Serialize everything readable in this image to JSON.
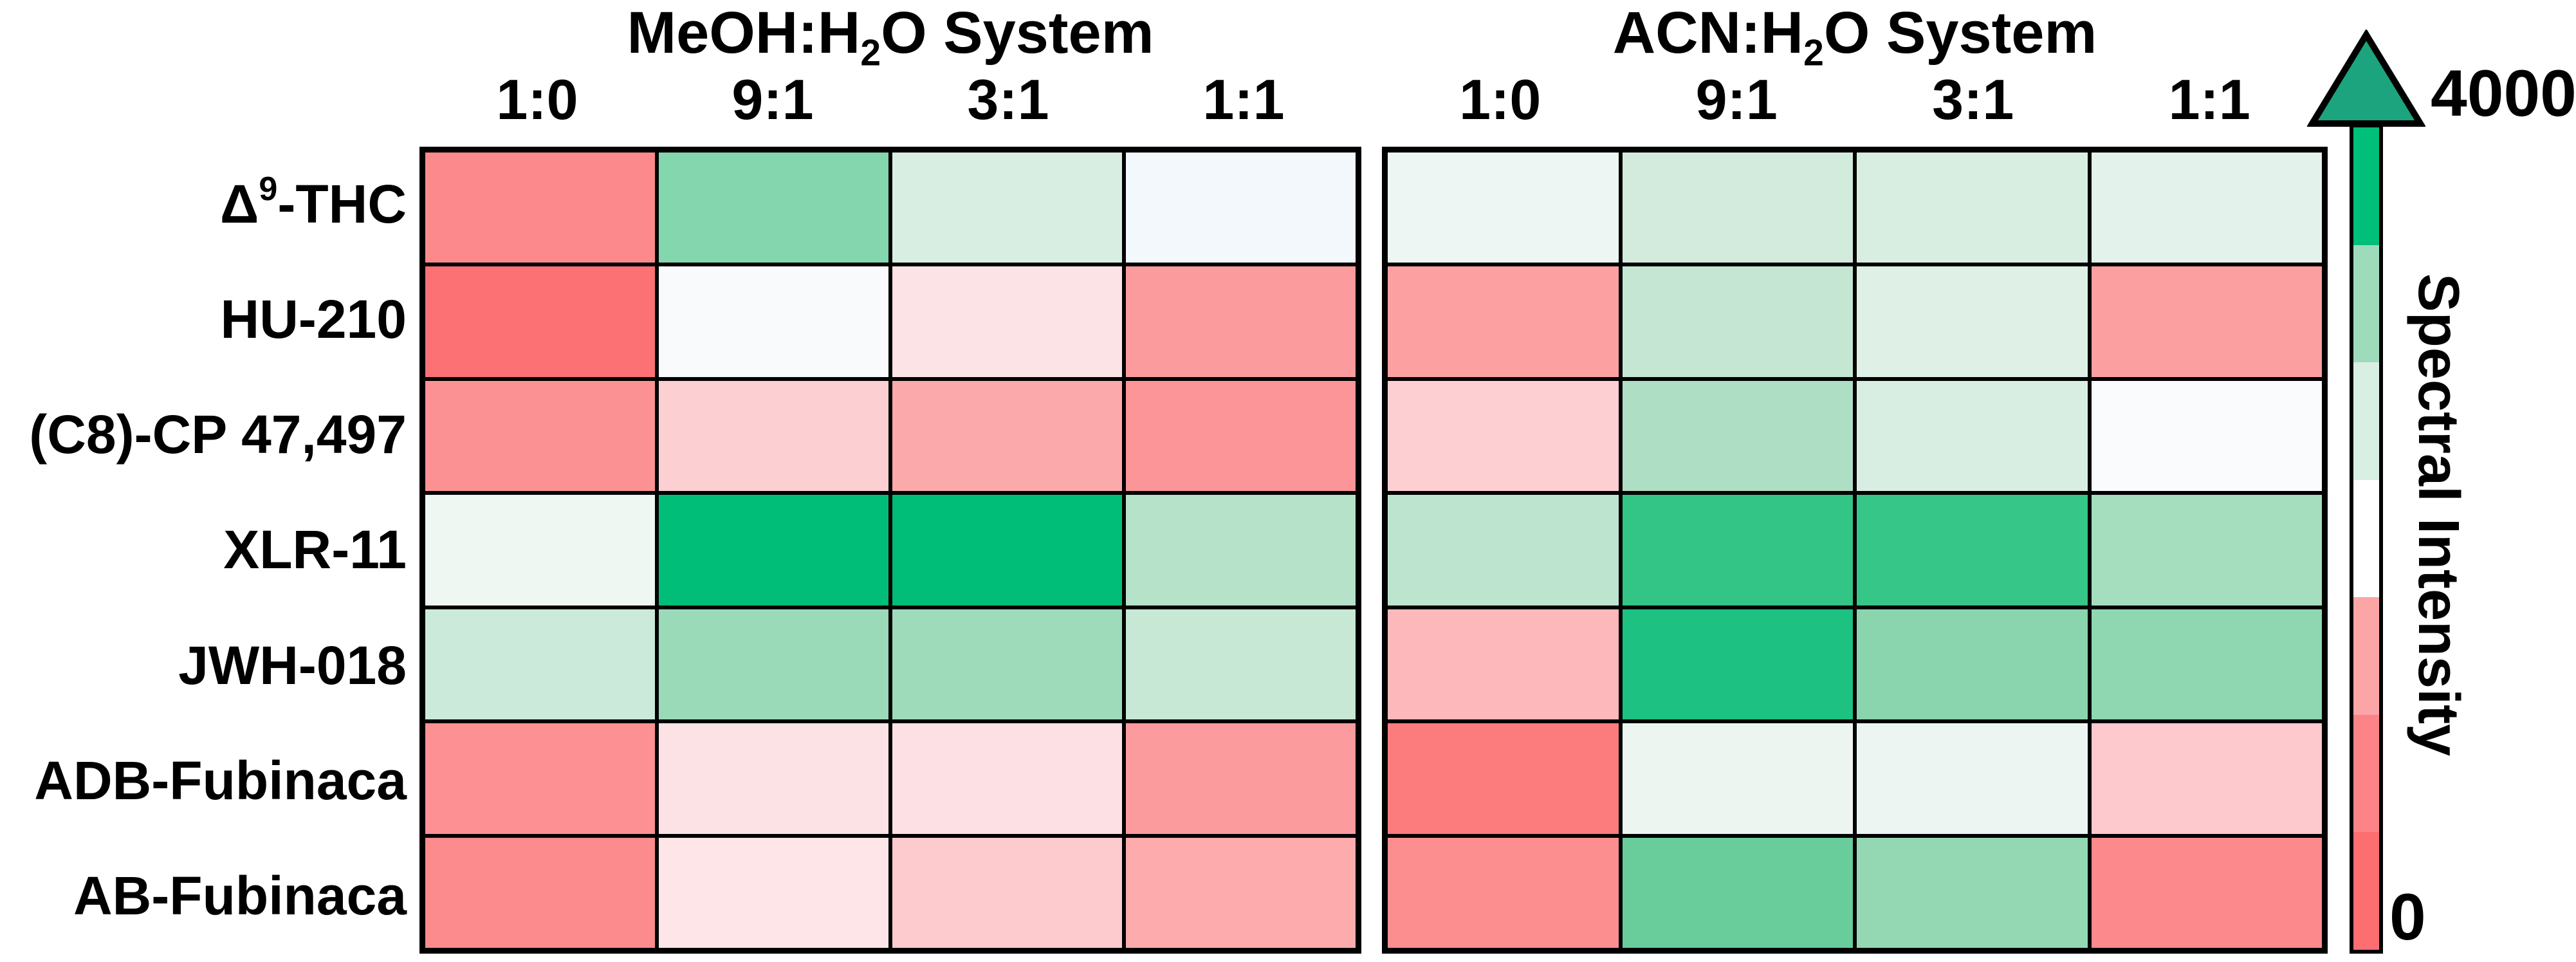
{
  "titles": {
    "left": {
      "pre": "MeOH:H",
      "sub": "2",
      "post": "O System"
    },
    "right": {
      "pre": "ACN:H",
      "sub": "2",
      "post": "O System"
    }
  },
  "column_labels": {
    "meoh": [
      "1:0",
      "9:1",
      "3:1",
      "1:1"
    ],
    "acn": [
      "1:0",
      "9:1",
      "3:1",
      "1:1"
    ]
  },
  "row_labels": [
    {
      "pre": "Δ",
      "sup": "9",
      "main": "-THC"
    },
    {
      "pre": "",
      "sup": "",
      "main": "HU-210"
    },
    {
      "pre": "",
      "sup": "",
      "main": "(C8)-CP 47,497"
    },
    {
      "pre": "",
      "sup": "",
      "main": "XLR-11"
    },
    {
      "pre": "",
      "sup": "",
      "main": "JWH-018"
    },
    {
      "pre": "",
      "sup": "",
      "main": "ADB-Fubinaca"
    },
    {
      "pre": "",
      "sup": "",
      "main": "AB-Fubinaca"
    }
  ],
  "colorbar": {
    "max_label": "4000",
    "min_label": "0",
    "title": "Spectral Intensity",
    "arrow_color": "#1BA47E",
    "border_color": "#000000",
    "segments": [
      "#00BF7B",
      "#9EDBBA",
      "#D9EFE3",
      "#FFFFFF",
      "#FCA5A7",
      "#FC8486",
      "#FC6E70"
    ]
  },
  "chart_data": {
    "type": "heatmap",
    "rows": [
      "Δ9-THC",
      "HU-210",
      "(C8)-CP 47,497",
      "XLR-11",
      "JWH-018",
      "ADB-Fubinaca",
      "AB-Fubinaca"
    ],
    "colorscale": {
      "label": "Spectral Intensity",
      "min": 0,
      "max": 4000,
      "min_color": "#FC6E70",
      "mid_color": "#FFFFFF",
      "max_color": "#00BF7B",
      "legend_position": "right"
    },
    "panels": [
      {
        "title": "MeOH:H2O System",
        "columns": [
          "1:0",
          "9:1",
          "3:1",
          "1:1"
        ],
        "values": [
          [
            450,
            2950,
            2300,
            2050
          ],
          [
            100,
            2000,
            1650,
            650
          ],
          [
            550,
            1350,
            850,
            600
          ],
          [
            2100,
            3950,
            3950,
            2600
          ],
          [
            2400,
            2800,
            2800,
            2450
          ],
          [
            500,
            1600,
            1600,
            650
          ],
          [
            450,
            1650,
            1300,
            900
          ]
        ],
        "cell_colors": [
          [
            "#FC8A8C",
            "#84D6AE",
            "#D8EEE2",
            "#F2F8FB"
          ],
          [
            "#FC7173",
            "#F9FAFC",
            "#FCE3E6",
            "#FC9B9D"
          ],
          [
            "#FC9193",
            "#FCCFD2",
            "#FCA9AB",
            "#FC9597"
          ],
          [
            "#EFF7F3",
            "#00BE77",
            "#00BE77",
            "#B5E2C9"
          ],
          [
            "#CCEADA",
            "#9BDAB8",
            "#9EDBBA",
            "#C6E8D5"
          ],
          [
            "#FC9092",
            "#FDE2E5",
            "#FDE0E3",
            "#FC9B9E"
          ],
          [
            "#FC8B8D",
            "#FDE5E8",
            "#FDCBCE",
            "#FDABAD"
          ]
        ]
      },
      {
        "title": "ACN:H2O System",
        "columns": [
          "1:0",
          "9:1",
          "3:1",
          "1:1"
        ],
        "values": [
          [
            2100,
            2350,
            2300,
            2250
          ],
          [
            700,
            2450,
            2250,
            700
          ],
          [
            1350,
            2650,
            2300,
            2000
          ],
          [
            2550,
            3600,
            3600,
            2700
          ],
          [
            1050,
            3750,
            2900,
            2900
          ],
          [
            250,
            2100,
            2100,
            1300
          ],
          [
            500,
            3150,
            2850,
            450
          ]
        ],
        "cell_colors": [
          [
            "#EDF6F2",
            "#D2EBDD",
            "#D8EEE1",
            "#E3F2EA"
          ],
          [
            "#FCA0A2",
            "#C4E6D2",
            "#DFF0E6",
            "#FC9FA0"
          ],
          [
            "#FDCFD3",
            "#AEDFC4",
            "#D8EEE2",
            "#FAFBFD"
          ],
          [
            "#BCE4CE",
            "#32C586",
            "#35C688",
            "#A5DDBF"
          ],
          [
            "#FDB8BB",
            "#1DC181",
            "#8AD5AD",
            "#8FD7B1"
          ],
          [
            "#FC7B7D",
            "#EDF5F1",
            "#EDF5F2",
            "#FDC9CC"
          ],
          [
            "#FC8E90",
            "#68CD9B",
            "#93D8B3",
            "#FC8A8C"
          ]
        ]
      }
    ]
  }
}
